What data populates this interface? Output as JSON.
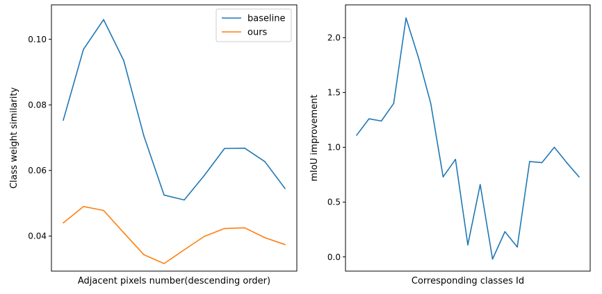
{
  "chart_data": [
    {
      "type": "line",
      "title": "",
      "xlabel": "Adjacent pixels number(descending order)",
      "ylabel": "Class weight similarity",
      "ylim": [
        0.0293,
        0.1105
      ],
      "yticks": [
        0.04,
        0.06,
        0.08,
        0.1
      ],
      "yticklabels": [
        "0.04",
        "0.06",
        "0.08",
        "0.10"
      ],
      "x": [
        0,
        1,
        2,
        3,
        4,
        5,
        6,
        7,
        8,
        9,
        10,
        11
      ],
      "xticks_visible": false,
      "legend": "top-right",
      "grid": false,
      "series": [
        {
          "name": "baseline",
          "color": "#1f77b4",
          "values": [
            0.0753,
            0.0969,
            0.106,
            0.0935,
            0.0705,
            0.0525,
            0.051,
            0.0585,
            0.0667,
            0.0668,
            0.0627,
            0.0545
          ]
        },
        {
          "name": "ours",
          "color": "#ff7f0e",
          "values": [
            0.044,
            0.049,
            0.0478,
            0.041,
            0.0343,
            0.0316,
            0.0358,
            0.0399,
            0.0423,
            0.0425,
            0.0395,
            0.0374
          ]
        }
      ]
    },
    {
      "type": "line",
      "title": "",
      "xlabel": "Corresponding classes Id",
      "ylabel": "mIoU improvement",
      "ylim": [
        -0.13,
        2.3
      ],
      "yticks": [
        0.0,
        0.5,
        1.0,
        1.5,
        2.0
      ],
      "yticklabels": [
        "0.0",
        "0.5",
        "1.0",
        "1.5",
        "2.0"
      ],
      "x": [
        0,
        1,
        2,
        3,
        4,
        5,
        6,
        7,
        8,
        9,
        10,
        11,
        12,
        13,
        14,
        15,
        16,
        17,
        18
      ],
      "xticks_visible": false,
      "grid": false,
      "series": [
        {
          "color": "#1f77b4",
          "values": [
            1.11,
            1.26,
            1.24,
            1.4,
            2.18,
            1.82,
            1.4,
            0.73,
            0.89,
            0.11,
            0.66,
            -0.02,
            0.23,
            0.09,
            0.87,
            0.86,
            1.0,
            0.86,
            0.73
          ]
        }
      ]
    }
  ]
}
